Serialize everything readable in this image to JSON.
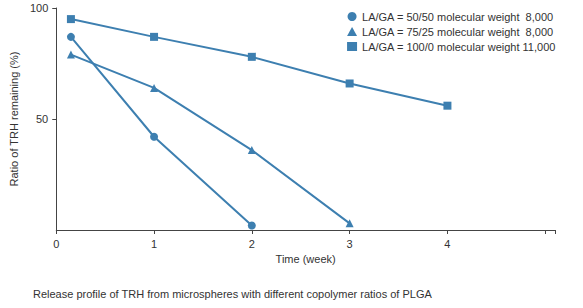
{
  "chart_data": {
    "type": "line",
    "title": "Release profile of TRH from microspheres with different copolymer ratios of PLGA",
    "x_label": "Time (week)",
    "y_label": "Ratio of TRH remaining (%)",
    "xlim": [
      0,
      5.1
    ],
    "xticks": [
      0,
      1,
      2,
      3,
      4
    ],
    "ylim": [
      0,
      100
    ],
    "yticks": [
      50,
      100
    ],
    "grid": false,
    "legend": "upper right",
    "series": [
      {
        "name": "LA/GA = 50/50 molecular weight  8,000",
        "color": "#3d7fb0",
        "marker": "circle",
        "x": [
          0.15,
          1,
          2
        ],
        "values": [
          87,
          42,
          2
        ]
      },
      {
        "name": "LA/GA = 75/25 molecular weight  8,000",
        "color": "#3d7fb0",
        "marker": "triangle",
        "x": [
          0.15,
          1,
          2,
          3
        ],
        "values": [
          79,
          64,
          36,
          3
        ]
      },
      {
        "name": "LA/GA = 100/0 molecular weight 11,000",
        "color": "#3d7fb0",
        "marker": "square",
        "x": [
          0.15,
          1,
          2,
          3,
          4
        ],
        "values": [
          95,
          87,
          78,
          66,
          56
        ]
      }
    ]
  }
}
